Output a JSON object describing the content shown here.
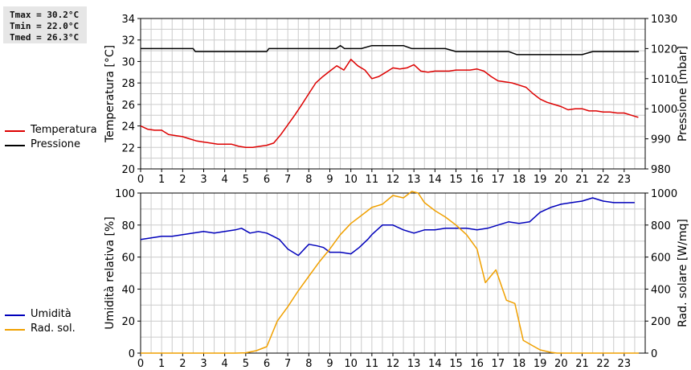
{
  "stats": {
    "tmax": "Tmax = 30.2°C",
    "tmin": "Tmin = 22.0°C",
    "tmed": "Tmed = 26.3°C"
  },
  "colors": {
    "temperatura": "#dd0000",
    "pressione": "#000000",
    "umidita": "#0000bb",
    "radsol": "#f0a000",
    "grid": "#cccccc"
  },
  "chart_data": [
    {
      "type": "line",
      "x_ticks": [
        "0",
        "1",
        "2",
        "3",
        "4",
        "5",
        "6",
        "7",
        "8",
        "9",
        "10",
        "11",
        "12",
        "13",
        "14",
        "15",
        "16",
        "17",
        "18",
        "19",
        "20",
        "21",
        "22",
        "23"
      ],
      "xlim": [
        0,
        24
      ],
      "ylabel_left": "Temperatura [°C]",
      "ylim_left": [
        20,
        34
      ],
      "yticks_left": [
        "20",
        "22",
        "24",
        "26",
        "28",
        "30",
        "32",
        "34"
      ],
      "ylabel_right": "Pressione [mbar]",
      "ylim_right": [
        980,
        1030
      ],
      "yticks_right": [
        "980",
        "990",
        "1000",
        "1010",
        "1020",
        "1030"
      ],
      "grid": true,
      "legend_position": "left",
      "series": [
        {
          "name": "Temperatura",
          "axis": "left",
          "x": [
            0,
            0.33,
            0.67,
            1,
            1.33,
            1.67,
            2,
            2.33,
            2.67,
            3,
            3.33,
            3.67,
            4,
            4.33,
            4.67,
            5,
            5.33,
            5.67,
            6,
            6.33,
            6.67,
            7,
            7.33,
            7.67,
            8,
            8.33,
            8.67,
            9,
            9.33,
            9.67,
            10,
            10.33,
            10.67,
            11,
            11.33,
            11.67,
            12,
            12.33,
            12.67,
            13,
            13.33,
            13.67,
            14,
            14.33,
            14.67,
            15,
            15.33,
            15.67,
            16,
            16.33,
            16.67,
            17,
            17.33,
            17.67,
            18,
            18.33,
            18.67,
            19,
            19.33,
            19.67,
            20,
            20.33,
            20.67,
            21,
            21.33,
            21.67,
            22,
            22.33,
            22.67,
            23,
            23.33,
            23.67
          ],
          "y": [
            24.0,
            23.7,
            23.6,
            23.6,
            23.2,
            23.1,
            23.0,
            22.8,
            22.6,
            22.5,
            22.4,
            22.3,
            22.3,
            22.3,
            22.1,
            22.0,
            22.0,
            22.1,
            22.2,
            22.4,
            23.2,
            24.1,
            25.0,
            26.0,
            27.0,
            28.0,
            28.6,
            29.1,
            29.6,
            29.2,
            30.2,
            29.6,
            29.2,
            28.4,
            28.6,
            29.0,
            29.4,
            29.3,
            29.4,
            29.7,
            29.1,
            29.0,
            29.1,
            29.1,
            29.1,
            29.2,
            29.2,
            29.2,
            29.3,
            29.1,
            28.6,
            28.2,
            28.1,
            28.0,
            27.8,
            27.6,
            27.0,
            26.5,
            26.2,
            26.0,
            25.8,
            25.5,
            25.6,
            25.6,
            25.4,
            25.4,
            25.3,
            25.3,
            25.2,
            25.2,
            25.0,
            24.8
          ]
        },
        {
          "name": "Pressione",
          "axis": "right",
          "x": [
            0,
            2.5,
            2.6,
            4.9,
            5,
            6,
            6.1,
            9.3,
            9.5,
            9.7,
            10,
            10.5,
            11,
            12.5,
            12.9,
            14.5,
            15,
            17.5,
            17.9,
            21,
            21.5,
            23.7
          ],
          "y": [
            1020,
            1020,
            1019,
            1019,
            1019,
            1019,
            1020,
            1020,
            1021,
            1020,
            1020,
            1020,
            1021,
            1021,
            1020,
            1020,
            1019,
            1019,
            1018,
            1018,
            1019,
            1019
          ]
        }
      ]
    },
    {
      "type": "line",
      "x_ticks": [
        "0",
        "1",
        "2",
        "3",
        "4",
        "5",
        "6",
        "7",
        "8",
        "9",
        "10",
        "11",
        "12",
        "13",
        "14",
        "15",
        "16",
        "17",
        "18",
        "19",
        "20",
        "21",
        "22",
        "23"
      ],
      "xlim": [
        0,
        24
      ],
      "ylabel_left": "Umidità relativa [%]",
      "ylim_left": [
        0,
        100
      ],
      "yticks_left": [
        "0",
        "20",
        "40",
        "60",
        "80",
        "100"
      ],
      "ylabel_right": "Rad. solare [W/mq]",
      "ylim_right": [
        0,
        1000
      ],
      "yticks_right": [
        "0",
        "200",
        "400",
        "600",
        "800",
        "1000"
      ],
      "grid": true,
      "legend_position": "left",
      "series": [
        {
          "name": "Umidità",
          "axis": "left",
          "x": [
            0,
            0.5,
            1,
            1.5,
            2,
            2.5,
            3,
            3.5,
            4,
            4.5,
            4.8,
            5.2,
            5.6,
            6,
            6.3,
            6.6,
            7,
            7.5,
            8,
            8.4,
            8.7,
            9,
            9.5,
            10,
            10.4,
            10.8,
            11,
            11.5,
            12,
            12.5,
            13,
            13.5,
            14,
            14.5,
            15,
            15.5,
            16,
            16.5,
            17,
            17.5,
            18,
            18.5,
            19,
            19.5,
            20,
            20.5,
            21,
            21.5,
            22,
            22.5,
            23,
            23.5
          ],
          "y": [
            71,
            72,
            73,
            73,
            74,
            75,
            76,
            75,
            76,
            77,
            78,
            75,
            76,
            75,
            73,
            71,
            65,
            61,
            68,
            67,
            66,
            63,
            63,
            62,
            66,
            71,
            74,
            80,
            80,
            77,
            75,
            77,
            77,
            78,
            78,
            78,
            77,
            78,
            80,
            82,
            81,
            82,
            88,
            91,
            93,
            94,
            95,
            97,
            95,
            94,
            94,
            94
          ]
        },
        {
          "name": "Rad. sol.",
          "axis": "right",
          "x": [
            0,
            4.5,
            5,
            5.5,
            6,
            6.5,
            7,
            7.5,
            8,
            8.5,
            9,
            9.5,
            10,
            10.5,
            11,
            11.5,
            12,
            12.5,
            12.9,
            13.2,
            13.5,
            14,
            14.5,
            15,
            15.5,
            16,
            16.4,
            16.9,
            17.4,
            17.8,
            18.2,
            18.6,
            19,
            19.5,
            19.8,
            20,
            23.7
          ],
          "y": [
            0,
            0,
            2,
            15,
            40,
            200,
            290,
            390,
            480,
            570,
            650,
            740,
            810,
            860,
            910,
            930,
            985,
            970,
            1010,
            1000,
            940,
            890,
            850,
            800,
            740,
            650,
            440,
            520,
            330,
            310,
            80,
            50,
            20,
            5,
            0,
            0,
            0
          ]
        }
      ]
    }
  ],
  "legend": {
    "top": [
      {
        "label": "Temperatura",
        "color": "#dd0000"
      },
      {
        "label": "Pressione",
        "color": "#000000"
      }
    ],
    "bottom": [
      {
        "label": "Umidità",
        "color": "#0000bb"
      },
      {
        "label": "Rad. sol.",
        "color": "#f0a000"
      }
    ]
  }
}
